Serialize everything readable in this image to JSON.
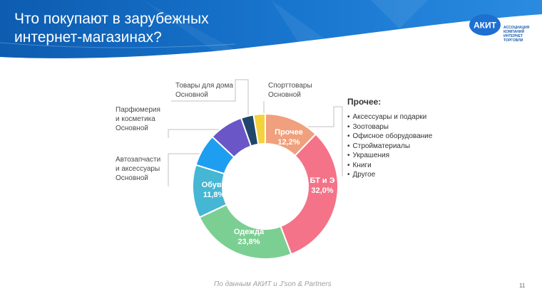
{
  "header": {
    "title_line1": "Что покупают в зарубежных",
    "title_line2": "интернет-магазинах?"
  },
  "logo": {
    "mark": "АКИТ",
    "text": [
      "АССОЦИАЦИЯ",
      "КОМПАНИЙ",
      "ИНТЕРНЕТ",
      "ТОРГОВЛИ"
    ]
  },
  "colors": {
    "header_blue": "#1a72c8",
    "header_dark": "#0d4f9a"
  },
  "chart_data": {
    "type": "pie",
    "slices": [
      {
        "name": "Прочее",
        "value": 12.2,
        "label": "12,2%",
        "color": "#f0a07c",
        "inner_label": true
      },
      {
        "name": "БТ и Э",
        "value": 32.0,
        "label": "32,0%",
        "color": "#f47388",
        "inner_label": true
      },
      {
        "name": "Одежда",
        "value": 23.8,
        "label": "23,8%",
        "color": "#7ccf92",
        "inner_label": true
      },
      {
        "name": "Обувь",
        "value": 11.8,
        "label": "11,8%",
        "color": "#45b6d3",
        "inner_label": true
      },
      {
        "name": "Автозапчасти и аксессуары",
        "value": 7.2,
        "label": "",
        "color": "#1e9ef0",
        "inner_label": false
      },
      {
        "name": "Парфюмерия и косметика",
        "value": 7.6,
        "label": "",
        "color": "#6a56c7",
        "inner_label": false
      },
      {
        "name": "Товары для дома",
        "value": 2.8,
        "label": "",
        "color": "#20476b",
        "inner_label": false
      },
      {
        "name": "Спорттовары",
        "value": 2.6,
        "label": "",
        "color": "#f3d23c",
        "inner_label": false
      }
    ],
    "callouts": [
      {
        "lines": [
          "Товары для дома",
          "Основной"
        ]
      },
      {
        "lines": [
          "Спорттовары",
          "Основной"
        ]
      },
      {
        "lines": [
          "Парфюмерия",
          "и косметика",
          "Основной"
        ]
      },
      {
        "lines": [
          "Автозапчасти",
          "и аксессуары",
          "Основной"
        ]
      }
    ]
  },
  "other": {
    "title": "Прочее:",
    "items": [
      "Аксессуары и подарки",
      "Зоотовары",
      "Офисное оборудование",
      "Стройматериалы",
      "Украшения",
      "Книги",
      "Другое"
    ]
  },
  "footer": {
    "source": "По данным АКИТ и J'son & Partners",
    "page": "11"
  }
}
